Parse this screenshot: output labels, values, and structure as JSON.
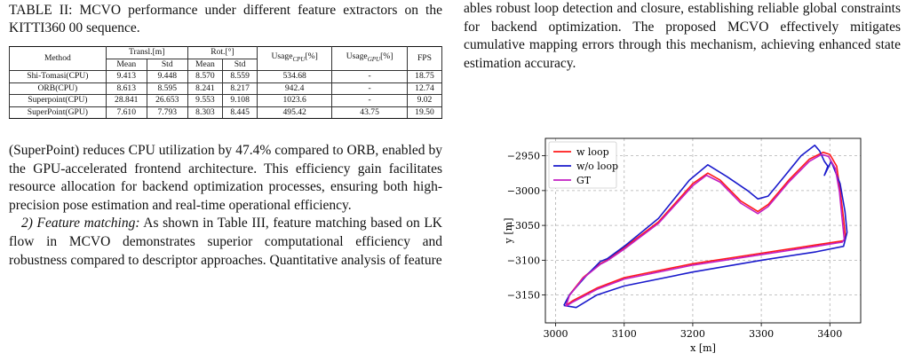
{
  "left": {
    "caption": "TABLE II: MCVO performance under different feature extractors on the KITTI360 00 sequence.",
    "table": {
      "headers": {
        "method": "Method",
        "transl": "Transl.[m]",
        "rot": "Rot.[°]",
        "usage_cpu": "Usage",
        "usage_cpu_sub": "CPU",
        "usage_cpu_unit": "[%]",
        "usage_gpu": "Usage",
        "usage_gpu_sub": "GPU",
        "usage_gpu_unit": "[%]",
        "fps": "FPS",
        "mean": "Mean",
        "std": "Std"
      },
      "rows": [
        {
          "method": "Shi-Tomasi(CPU)",
          "t_mean": "9.413",
          "t_std": "9.448",
          "r_mean": "8.570",
          "r_std": "8.559",
          "cpu": "534.68",
          "gpu": "-",
          "fps": "18.75"
        },
        {
          "method": "ORB(CPU)",
          "t_mean": "8.613",
          "t_std": "8.595",
          "r_mean": "8.241",
          "r_std": "8.217",
          "cpu": "942.4",
          "gpu": "-",
          "fps": "12.74"
        },
        {
          "method": "Superpoint(CPU)",
          "t_mean": "28.841",
          "t_std": "26.653",
          "r_mean": "9.553",
          "r_std": "9.108",
          "cpu": "1023.6",
          "gpu": "-",
          "fps": "9.02"
        },
        {
          "method": "SuperPoint(GPU)",
          "t_mean": "7.610",
          "t_std": "7.793",
          "r_mean": "8.303",
          "r_std": "8.445",
          "cpu": "495.42",
          "gpu": "43.75",
          "fps": "19.50"
        }
      ]
    },
    "para1": "(SuperPoint) reduces CPU utilization by 47.4% compared to ORB, enabled by the GPU-accelerated frontend architecture. This efficiency gain facilitates resource allocation for backend optimization processes, ensuring both high-precision pose estimation and real-time operational efficiency.",
    "para2_heading": "2) Feature matching:",
    "para2_body": " As shown in Table III, feature matching based on LK flow in MCVO demonstrates superior computational efficiency and robustness compared to descriptor approaches. Quantitative analysis of feature"
  },
  "right": {
    "para": "ables robust loop detection and closure, establishing reliable global constraints for backend optimization. The proposed MCVO effectively mitigates cumulative mapping errors through this mechanism, achieving enhanced state estimation accuracy."
  },
  "chart_data": {
    "type": "line",
    "xlabel": "x [m]",
    "ylabel": "y [m]",
    "xlim": [
      2985,
      3445
    ],
    "ylim": [
      -3190,
      -2925
    ],
    "xticks": [
      3000,
      3100,
      3200,
      3300,
      3400
    ],
    "yticks": [
      -2950,
      -3000,
      -3050,
      -3100,
      -3150
    ],
    "grid": true,
    "legend": "top-left",
    "series": [
      {
        "name": "w loop",
        "color": "#ff1a1a",
        "x": [
          3015,
          3020,
          3040,
          3065,
          3075,
          3100,
          3150,
          3200,
          3222,
          3240,
          3270,
          3295,
          3310,
          3340,
          3370,
          3390,
          3400,
          3410,
          3415,
          3420,
          3423,
          3420,
          3380,
          3300,
          3200,
          3100,
          3060,
          3025,
          3015
        ],
        "y": [
          -3165,
          -3150,
          -3125,
          -3105,
          -3100,
          -3082,
          -3045,
          -2990,
          -2975,
          -2985,
          -3015,
          -3030,
          -3020,
          -2985,
          -2955,
          -2945,
          -2948,
          -2965,
          -3000,
          -3040,
          -3068,
          -3072,
          -3078,
          -3090,
          -3105,
          -3125,
          -3140,
          -3158,
          -3165
        ]
      },
      {
        "name": "w/o loop",
        "color": "#1a1acc",
        "x": [
          3012,
          3020,
          3045,
          3065,
          3075,
          3100,
          3150,
          3195,
          3222,
          3250,
          3280,
          3295,
          3310,
          3335,
          3358,
          3378,
          3385,
          3392,
          3397,
          3392,
          3402,
          3415,
          3422,
          3425,
          3420,
          3380,
          3300,
          3200,
          3100,
          3060,
          3030,
          3012
        ],
        "y": [
          -3165,
          -3150,
          -3122,
          -3102,
          -3098,
          -3080,
          -3040,
          -2985,
          -2963,
          -2980,
          -3000,
          -3012,
          -3008,
          -2978,
          -2950,
          -2935,
          -2943,
          -2958,
          -2965,
          -2978,
          -2958,
          -2990,
          -3030,
          -3060,
          -3080,
          -3088,
          -3100,
          -3117,
          -3137,
          -3150,
          -3168,
          -3165
        ]
      },
      {
        "name": "GT",
        "color": "#c21ec2",
        "x": [
          3015,
          3020,
          3040,
          3065,
          3075,
          3100,
          3150,
          3200,
          3220,
          3240,
          3270,
          3295,
          3310,
          3340,
          3370,
          3388,
          3398,
          3408,
          3414,
          3418,
          3421,
          3418,
          3380,
          3300,
          3200,
          3100,
          3060,
          3025,
          3015
        ],
        "y": [
          -3166,
          -3151,
          -3126,
          -3106,
          -3101,
          -3084,
          -3047,
          -2993,
          -2978,
          -2988,
          -3018,
          -3033,
          -3023,
          -2988,
          -2958,
          -2948,
          -2951,
          -2968,
          -3002,
          -3042,
          -3070,
          -3074,
          -3080,
          -3092,
          -3107,
          -3127,
          -3142,
          -3160,
          -3166
        ]
      }
    ]
  }
}
